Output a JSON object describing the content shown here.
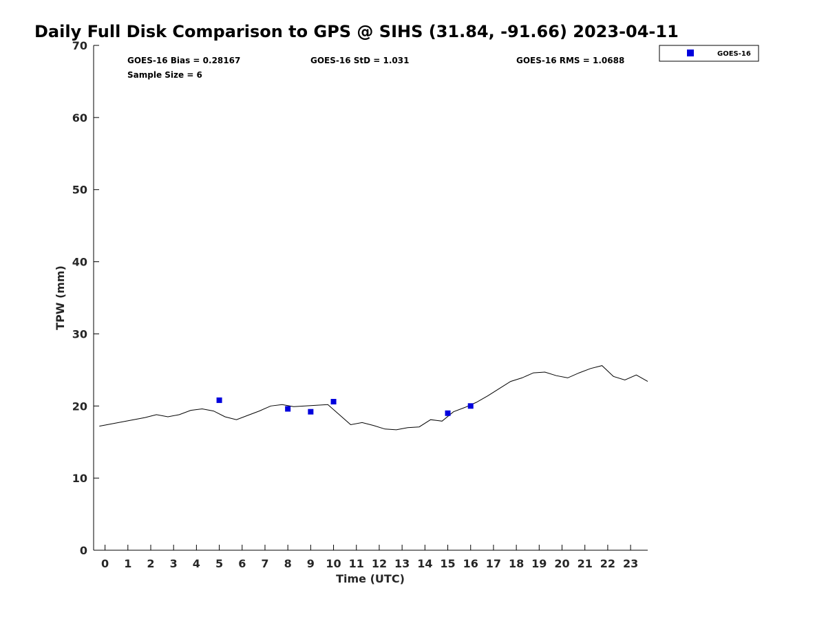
{
  "chart_data": {
    "type": "line",
    "title": "Daily Full Disk Comparison to GPS @ SIHS (31.84, -91.66) 2023-04-11",
    "xlabel": "Time (UTC)",
    "ylabel": "TPW (mm)",
    "xlim": [
      -0.5,
      23.75
    ],
    "ylim": [
      0,
      70
    ],
    "x_ticks": [
      0,
      1,
      2,
      3,
      4,
      5,
      6,
      7,
      8,
      9,
      10,
      11,
      12,
      13,
      14,
      15,
      16,
      17,
      18,
      19,
      20,
      21,
      22,
      23
    ],
    "x_tick_labels": [
      "0",
      "1",
      "2",
      "3",
      "4",
      "5",
      "6",
      "7",
      "8",
      "9",
      "10",
      "11",
      "12",
      "13",
      "14",
      "15",
      "16",
      "17",
      "18",
      "19",
      "20",
      "21",
      "22",
      "23"
    ],
    "y_ticks": [
      0,
      10,
      20,
      30,
      40,
      50,
      60,
      70
    ],
    "y_tick_labels": [
      "0",
      "10",
      "20",
      "30",
      "40",
      "50",
      "60",
      "70"
    ],
    "grid": false,
    "legend_position": "outside-top-right",
    "stats": {
      "bias": "GOES-16 Bias = 0.28167",
      "std": "GOES-16 StD = 1.031",
      "rms": "GOES-16 RMS = 1.0688",
      "sample_size": "Sample Size = 6"
    },
    "series": [
      {
        "type": "line",
        "color": "#000000",
        "x": [
          -0.25,
          0.25,
          0.75,
          1.25,
          1.75,
          2.25,
          2.75,
          3.25,
          3.75,
          4.25,
          4.75,
          5.25,
          5.75,
          6.25,
          6.75,
          7.25,
          7.75,
          8.25,
          8.75,
          9.25,
          9.75,
          10.25,
          10.75,
          11.25,
          11.75,
          12.25,
          12.75,
          13.25,
          13.75,
          14.25,
          14.75,
          15.25,
          15.75,
          16.25,
          16.75,
          17.25,
          17.75,
          18.25,
          18.75,
          19.25,
          19.75,
          20.25,
          20.75,
          21.25,
          21.75,
          22.25,
          22.75,
          23.25,
          23.75
        ],
        "y": [
          17.2,
          17.5,
          17.8,
          18.1,
          18.4,
          18.8,
          18.5,
          18.8,
          19.4,
          19.6,
          19.3,
          18.5,
          18.1,
          18.7,
          19.3,
          20.0,
          20.2,
          19.9,
          20.0,
          20.1,
          20.2,
          18.8,
          17.4,
          17.7,
          17.3,
          16.8,
          16.7,
          17.0,
          17.1,
          18.1,
          17.9,
          19.2,
          19.8,
          20.5,
          21.4,
          22.4,
          23.4,
          23.9,
          24.6,
          24.7,
          24.2,
          23.9,
          24.6,
          25.2,
          25.6,
          24.1,
          23.6,
          24.3,
          23.4
        ]
      },
      {
        "name": "GOES-16",
        "type": "scatter",
        "marker": "square",
        "color": "#0000dd",
        "x": [
          5,
          8,
          9,
          10,
          15,
          16
        ],
        "y": [
          20.8,
          19.6,
          19.2,
          20.6,
          19.0,
          20.0
        ]
      }
    ]
  }
}
